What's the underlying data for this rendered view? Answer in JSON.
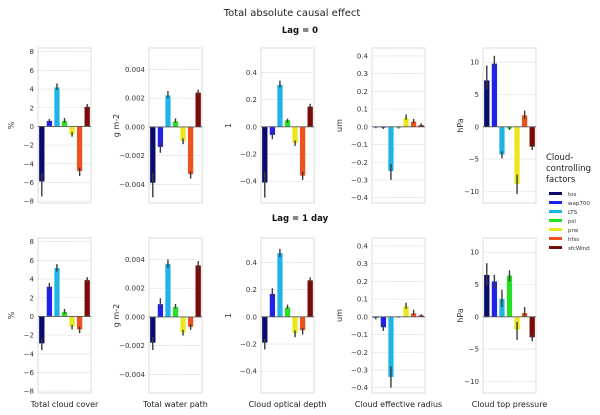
{
  "chart_data": {
    "type": "bar",
    "title": "Total absolute causal effect",
    "rows": [
      "Lag = 0",
      "Lag = 1 day"
    ],
    "categories": [
      "tos",
      "wap700",
      "LTS",
      "psl",
      "prw",
      "hfss",
      "sfcWind"
    ],
    "colors": {
      "tos": "#0b0b6b",
      "wap700": "#1f22e8",
      "LTS": "#1fb4e8",
      "psl": "#26e026",
      "prw": "#e8e81c",
      "hfss": "#f0521e",
      "sfcWind": "#7a0b0b"
    },
    "legend": {
      "title_lines": [
        "Cloud-",
        "controlling",
        "factors"
      ],
      "placement": "right"
    },
    "grid": true,
    "panels": [
      {
        "xlabel": "Total cloud cover",
        "ylabel": "%",
        "ylim": [
          -8.2,
          8.4
        ],
        "ticks": [
          8,
          6,
          4,
          2,
          0,
          -2,
          -4,
          -6,
          -8
        ],
        "tick_labels": [
          "8",
          "6",
          "4",
          "2",
          "0",
          "−2",
          "−4",
          "−6",
          "−8"
        ],
        "lags": [
          {
            "values": [
              -5.9,
              0.6,
              4.2,
              0.6,
              -0.9,
              -4.8,
              2.1
            ],
            "err": [
              [
                -7.5,
                -5.0
              ],
              [
                0.4,
                0.8
              ],
              [
                3.9,
                4.6
              ],
              [
                0.4,
                0.9
              ],
              [
                -1.1,
                -0.6
              ],
              [
                -5.3,
                -4.4
              ],
              [
                1.9,
                2.4
              ]
            ]
          },
          {
            "values": [
              -2.9,
              3.2,
              5.2,
              0.5,
              -1.1,
              -1.4,
              3.9
            ],
            "err": [
              [
                -3.6,
                -2.3
              ],
              [
                2.8,
                3.6
              ],
              [
                4.8,
                5.6
              ],
              [
                0.3,
                0.8
              ],
              [
                -1.4,
                -0.9
              ],
              [
                -1.8,
                -1.1
              ],
              [
                3.6,
                4.2
              ]
            ]
          }
        ]
      },
      {
        "xlabel": "Total water path",
        "ylabel": "g m-2",
        "ylim": [
          -0.0053,
          0.0055
        ],
        "ticks": [
          0.004,
          0.002,
          0,
          -0.002,
          -0.004
        ],
        "tick_labels": [
          "0.004",
          "0.002",
          "0.000",
          "−0.002",
          "−0.004"
        ],
        "lags": [
          {
            "values": [
              -0.0039,
              -0.0014,
              0.0022,
              0.0004,
              -0.001,
              -0.0033,
              0.0024
            ],
            "err": [
              [
                -0.0049,
                -0.0032
              ],
              [
                -0.0018,
                -0.001
              ],
              [
                0.002,
                0.0025
              ],
              [
                0.0003,
                0.0006
              ],
              [
                -0.0012,
                -0.0008
              ],
              [
                -0.0036,
                -0.0031
              ],
              [
                0.0022,
                0.0026
              ]
            ]
          },
          {
            "values": [
              -0.0018,
              0.0009,
              0.0037,
              0.0007,
              -0.0011,
              -0.0007,
              0.0036
            ],
            "err": [
              [
                -0.0023,
                -0.0014
              ],
              [
                0.0006,
                0.0013
              ],
              [
                0.0034,
                0.004
              ],
              [
                0.0006,
                0.0009
              ],
              [
                -0.0013,
                -0.0009
              ],
              [
                -0.0009,
                -0.0005
              ],
              [
                0.0033,
                0.0039
              ]
            ]
          }
        ]
      },
      {
        "xlabel": "Cloud optical depth",
        "ylabel": "1",
        "ylim": [
          -0.56,
          0.58
        ],
        "ticks": [
          0.4,
          0.2,
          0,
          -0.2,
          -0.4
        ],
        "tick_labels": [
          "0.4",
          "0.2",
          "0.0",
          "−0.2",
          "−0.4"
        ],
        "lags": [
          {
            "values": [
              -0.41,
              -0.06,
              0.31,
              0.05,
              -0.12,
              -0.36,
              0.15
            ],
            "err": [
              [
                -0.52,
                -0.33
              ],
              [
                -0.09,
                -0.04
              ],
              [
                0.29,
                0.34
              ],
              [
                0.03,
                0.06
              ],
              [
                -0.14,
                -0.1
              ],
              [
                -0.39,
                -0.33
              ],
              [
                0.13,
                0.17
              ]
            ]
          },
          {
            "values": [
              -0.19,
              0.17,
              0.47,
              0.07,
              -0.12,
              -0.1,
              0.27
            ],
            "err": [
              [
                -0.24,
                -0.16
              ],
              [
                0.14,
                0.21
              ],
              [
                0.44,
                0.5
              ],
              [
                0.06,
                0.09
              ],
              [
                -0.15,
                -0.1
              ],
              [
                -0.13,
                -0.08
              ],
              [
                0.25,
                0.29
              ]
            ]
          }
        ]
      },
      {
        "xlabel": "Cloud effective radius",
        "ylabel": "um",
        "ylim": [
          -0.43,
          0.445
        ],
        "ticks": [
          0.4,
          0.3,
          0.2,
          0.1,
          0,
          -0.1,
          -0.2,
          -0.3,
          -0.4
        ],
        "tick_labels": [
          "0.4",
          "0.3",
          "0.2",
          "0.1",
          "0.0",
          "−0.1",
          "−0.2",
          "−0.3",
          "−0.4"
        ],
        "lags": [
          {
            "values": [
              -0.003,
              -0.006,
              -0.25,
              -0.005,
              0.05,
              0.03,
              0.01
            ],
            "err": [
              [
                -0.008,
                0
              ],
              [
                -0.012,
                0
              ],
              [
                -0.3,
                -0.21
              ],
              [
                -0.01,
                0
              ],
              [
                0.04,
                0.07
              ],
              [
                0.02,
                0.045
              ],
              [
                0.005,
                0.02
              ]
            ]
          },
          {
            "values": [
              -0.006,
              -0.06,
              -0.34,
              -0.003,
              0.06,
              0.02,
              0.008
            ],
            "err": [
              [
                -0.015,
                0
              ],
              [
                -0.08,
                -0.04
              ],
              [
                -0.4,
                -0.28
              ],
              [
                -0.006,
                0
              ],
              [
                0.045,
                0.08
              ],
              [
                0.01,
                0.04
              ],
              [
                0.002,
                0.015
              ]
            ]
          }
        ]
      },
      {
        "xlabel": "Cloud top pressure",
        "ylabel": "hPa",
        "ylim": [
          -11.8,
          12.2
        ],
        "ticks": [
          10,
          5,
          0,
          -5,
          -10
        ],
        "tick_labels": [
          "10",
          "5",
          "0",
          "−5",
          "−10"
        ],
        "lags": [
          {
            "values": [
              7.2,
              9.8,
              -4.3,
              -0.3,
              -8.9,
              1.8,
              -3.1
            ],
            "err": [
              [
                5.8,
                9.5
              ],
              [
                9.0,
                11.0
              ],
              [
                -4.9,
                -3.8
              ],
              [
                -0.5,
                -0.1
              ],
              [
                -10.4,
                -7.4
              ],
              [
                1.2,
                2.5
              ],
              [
                -3.6,
                -2.7
              ]
            ]
          },
          {
            "values": [
              6.5,
              5.5,
              2.8,
              6.4,
              -2.0,
              0.6,
              -3.2
            ],
            "err": [
              [
                4.8,
                8.3
              ],
              [
                4.4,
                6.5
              ],
              [
                1.5,
                4.2
              ],
              [
                5.5,
                7.2
              ],
              [
                -3.6,
                -0.8
              ],
              [
                0.0,
                1.5
              ],
              [
                -3.8,
                -2.6
              ]
            ]
          }
        ]
      }
    ]
  }
}
